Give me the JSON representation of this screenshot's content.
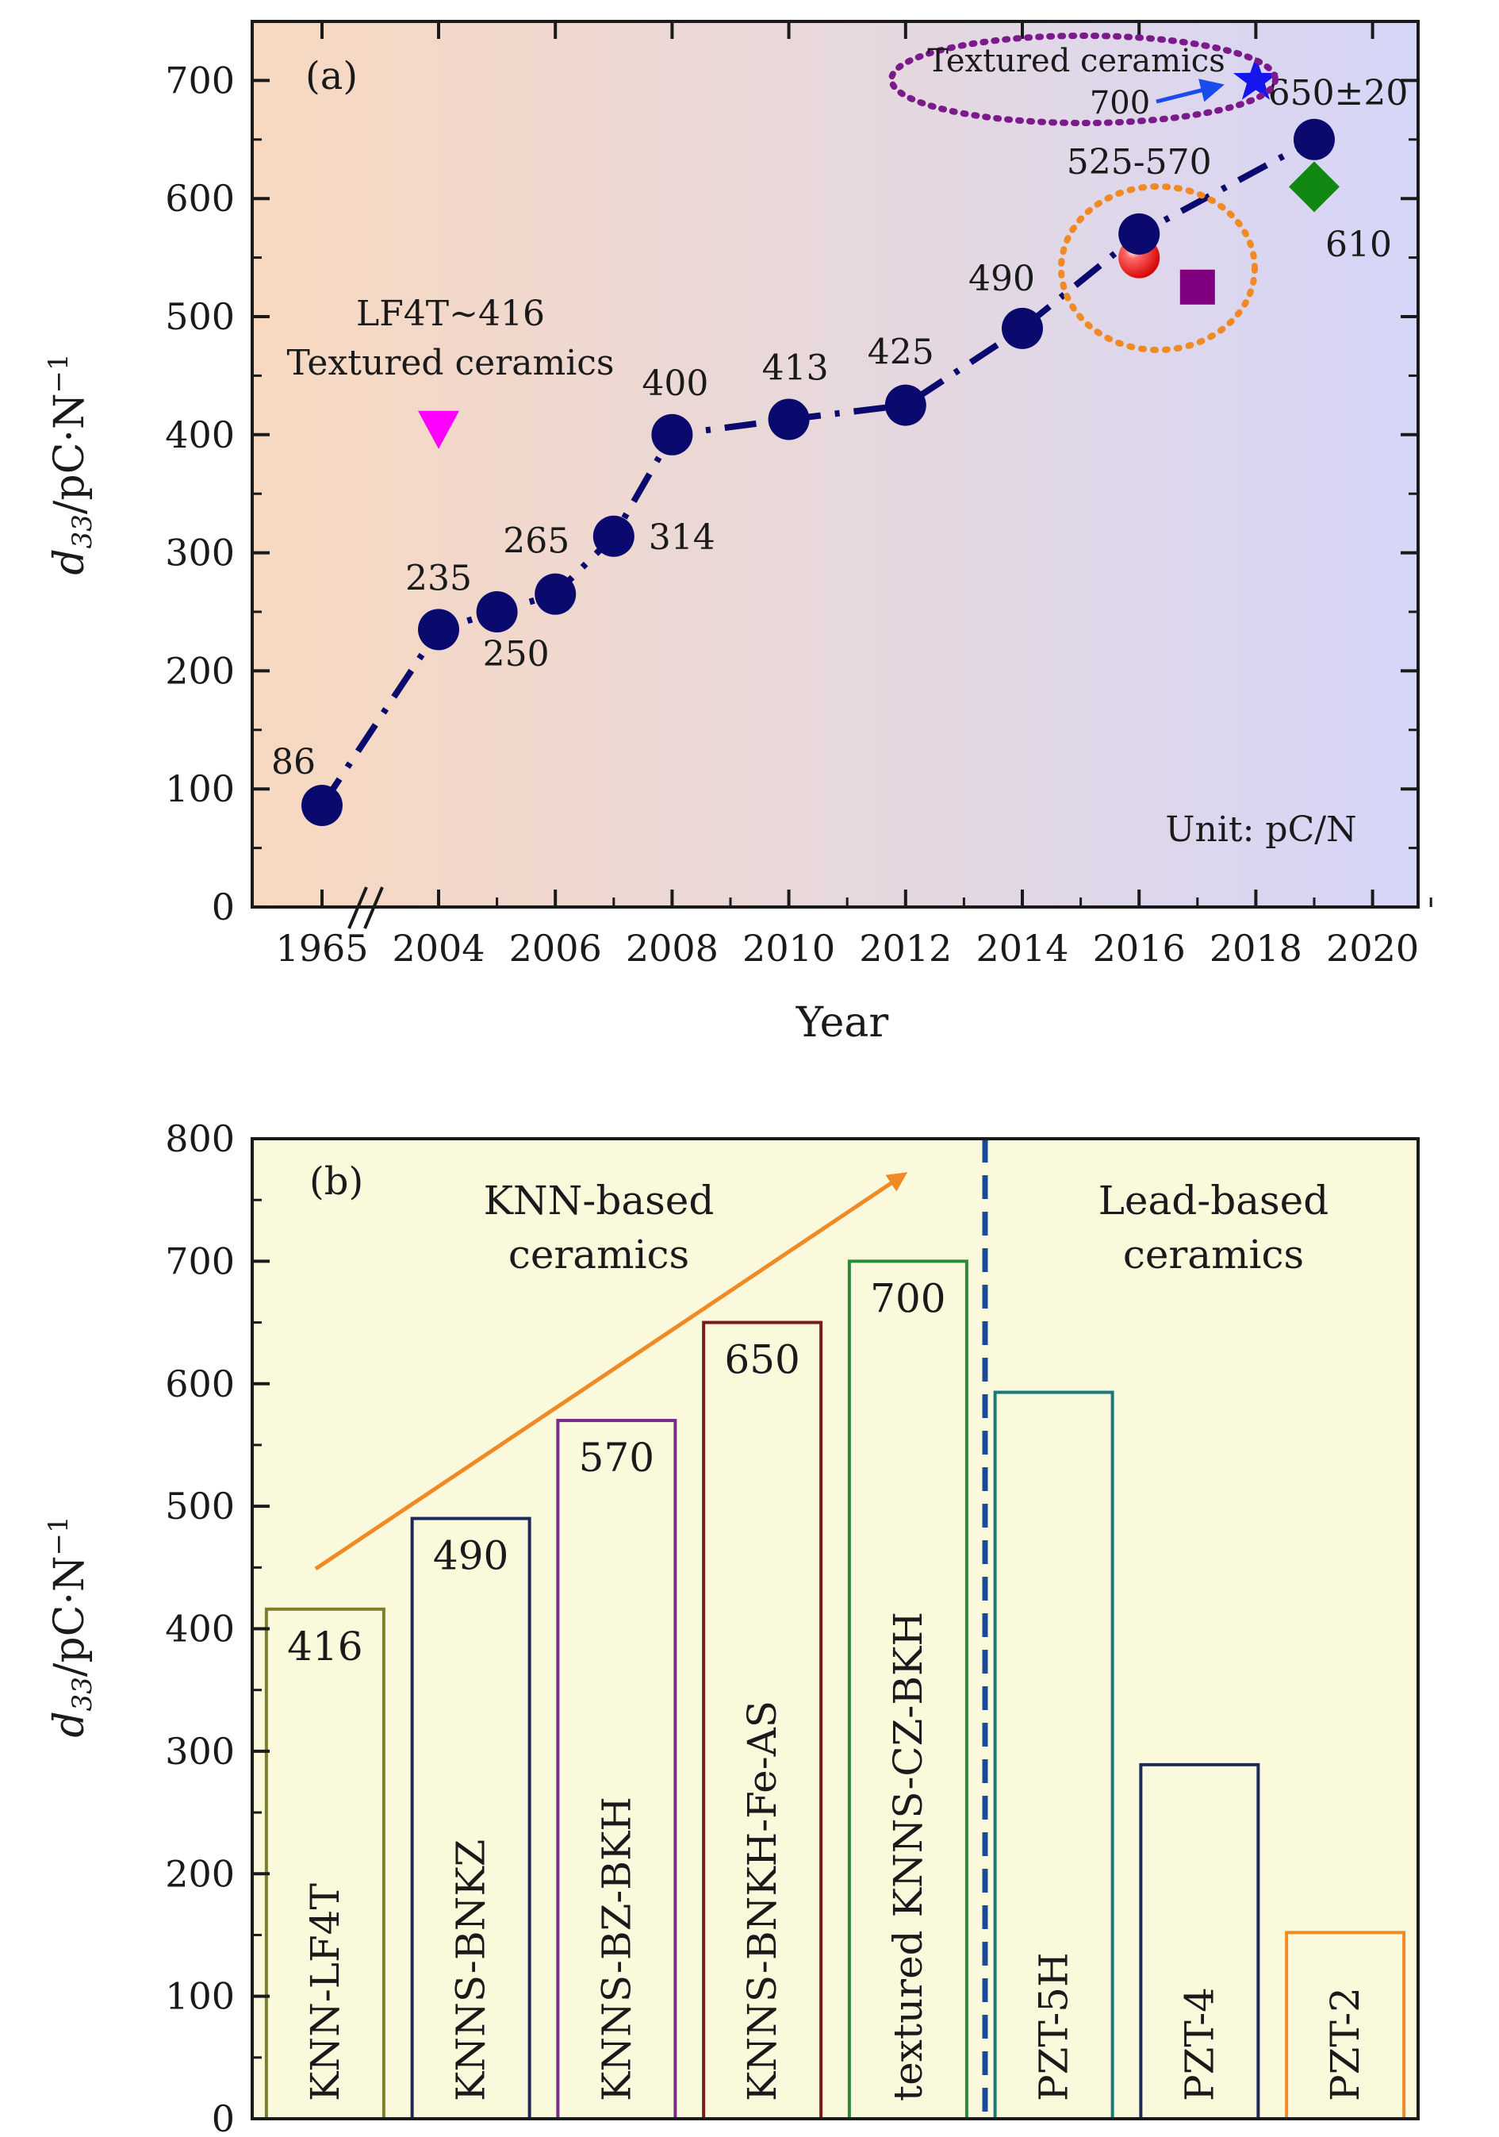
{
  "chart_data": [
    {
      "panel": "(a)",
      "type": "scatter",
      "xlabel": "Year",
      "ylabel_main": "d",
      "ylabel_sub": "33",
      "ylabel_unit": "/pC·N",
      "ylabel_sup": "−1",
      "ylim": [
        0,
        750
      ],
      "yticks": [
        "0",
        "100",
        "200",
        "300",
        "400",
        "500",
        "600",
        "700"
      ],
      "xticks": [
        "1965",
        "2004",
        "2006",
        "2008",
        "2010",
        "2012",
        "2014",
        "2016",
        "2018",
        "2020"
      ],
      "grid": false,
      "background": {
        "left": "#f8d9c0",
        "right": "#d6d6f8"
      },
      "series": [
        {
          "marker": "circle",
          "color": "#0a0a6e",
          "line": "dash-dot",
          "points": [
            {
              "x": "1965",
              "y": 86,
              "label": "86"
            },
            {
              "x": "2004",
              "y": 235,
              "label": "235"
            },
            {
              "x": "2005",
              "y": 250,
              "label": "250"
            },
            {
              "x": "2006",
              "y": 265,
              "label": "265"
            },
            {
              "x": "2007",
              "y": 314,
              "label": "314"
            },
            {
              "x": "2008",
              "y": 400,
              "label": "400"
            },
            {
              "x": "2010",
              "y": 413,
              "label": "413"
            },
            {
              "x": "2012",
              "y": 425,
              "label": "425"
            },
            {
              "x": "2014",
              "y": 490,
              "label": "490"
            },
            {
              "x": "2016",
              "y": 570,
              "label": "525-570"
            },
            {
              "x": "2019",
              "y": 650,
              "label": "650±20"
            }
          ]
        }
      ],
      "extra_points": [
        {
          "name": "triangle",
          "x": "2004",
          "y": 400,
          "marker": "triangle-down",
          "color": "#ff00ff"
        },
        {
          "name": "red-sphere",
          "x": "2016",
          "y": 550,
          "marker": "circle",
          "color": "#ee1111"
        },
        {
          "name": "square",
          "x": "2017",
          "y": 525,
          "marker": "square",
          "color": "#800080"
        },
        {
          "name": "star",
          "x": "2018",
          "y": 700,
          "marker": "star",
          "color": "#1515ee"
        },
        {
          "name": "diamond",
          "x": "2019",
          "y": 610,
          "marker": "diamond",
          "color": "#118811"
        }
      ],
      "annotations": {
        "panel_letter": "(a)",
        "lf4t_line1": "LF4T~416",
        "lf4t_line2": "Textured ceramics",
        "textured_top": "Textured ceramics",
        "star_label": "700",
        "diamond_label": "610",
        "unit": "Unit: pC/N"
      },
      "colors": {
        "orange_ellipse": "#f08a24",
        "purple_ellipse": "#7b1a8a",
        "arrow": "#1a4bee"
      }
    },
    {
      "panel": "(b)",
      "type": "bar",
      "ylabel_main": "d",
      "ylabel_sub": "33",
      "ylabel_unit": "/pC·N",
      "ylabel_sup": "−1",
      "ylim": [
        0,
        800
      ],
      "yticks": [
        "0",
        "100",
        "200",
        "300",
        "400",
        "500",
        "600",
        "700",
        "800"
      ],
      "grid": false,
      "background": "#fbf9dc",
      "categories": [
        "KNN-LF4T",
        "KNNS-BNKZ",
        "KNNS-BZ-BKH",
        "KNNS-BNKH-Fe-AS",
        "textured KNNS-CZ-BKH",
        "PZT-5H",
        "PZT-4",
        "PZT-2"
      ],
      "values": [
        416,
        490,
        570,
        650,
        700,
        593,
        289,
        152
      ],
      "value_labels": [
        "416",
        "490",
        "570",
        "650",
        "700",
        "",
        "",
        ""
      ],
      "bar_colors": [
        "#7d7d2a",
        "#1c2a5a",
        "#7a2a8a",
        "#7a1a1a",
        "#2a8a3a",
        "#1a7a7a",
        "#1c2a5a",
        "#f08a24"
      ],
      "group_labels": {
        "panel_letter": "(b)",
        "knn_line1": "KNN-based",
        "knn_line2": "ceramics",
        "lead_line1": "Lead-based",
        "lead_line2": "ceramics"
      },
      "divider_color": "#1a4b9a",
      "arrow_color": "#f08a24"
    }
  ]
}
